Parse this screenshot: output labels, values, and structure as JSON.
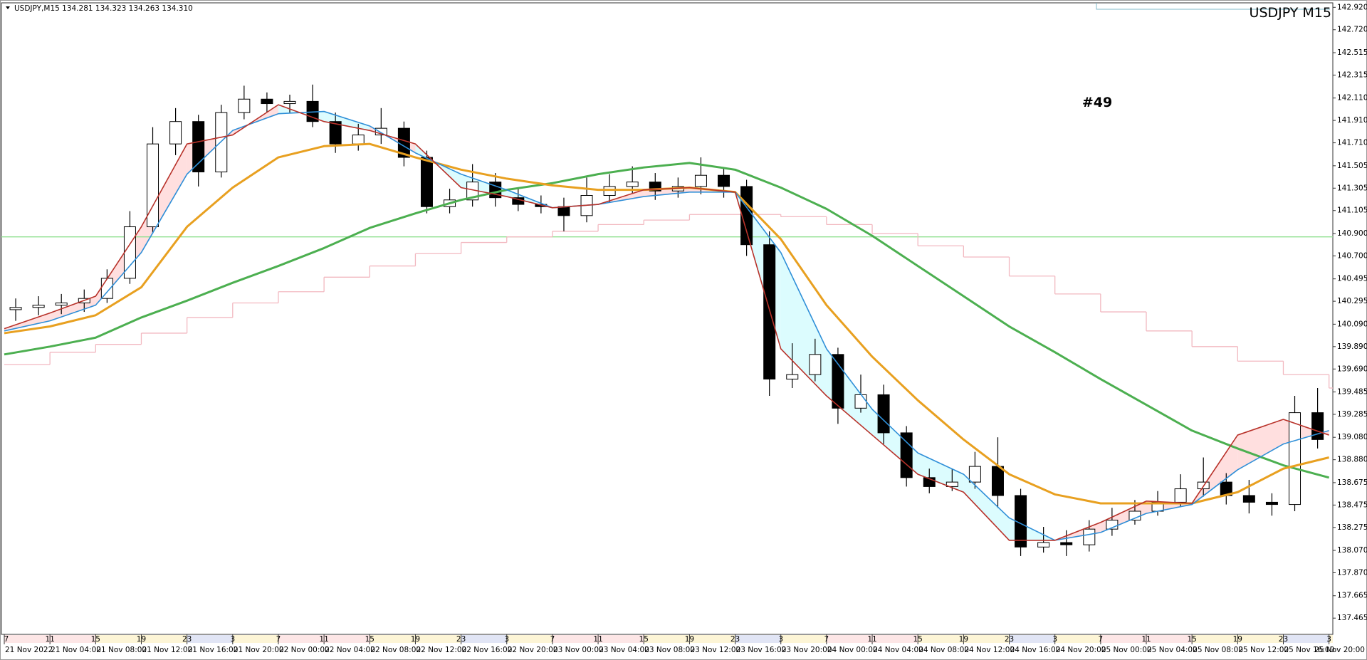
{
  "chart_data": {
    "type": "candlestick",
    "title": "USDJPY,M15  134.281 134.323 134.263 134.310",
    "symbol_label": "USDJPY M15",
    "annotation": "#49",
    "annotation_color": "#2ea043",
    "ylim": [
      137.32,
      142.96
    ],
    "yticks": [
      {
        "value": 142.92,
        "label": "142.920"
      },
      {
        "value": 142.72,
        "label": "142.720"
      },
      {
        "value": 142.515,
        "label": "142.515"
      },
      {
        "value": 142.315,
        "label": "142.315"
      },
      {
        "value": 142.11,
        "label": "142.110"
      },
      {
        "value": 141.91,
        "label": "141.910"
      },
      {
        "value": 141.71,
        "label": "141.710"
      },
      {
        "value": 141.505,
        "label": "141.505"
      },
      {
        "value": 141.305,
        "label": "141.305"
      },
      {
        "value": 141.105,
        "label": "141.105"
      },
      {
        "value": 140.9,
        "label": "140.900"
      },
      {
        "value": 140.7,
        "label": "140.700"
      },
      {
        "value": 140.495,
        "label": "140.495"
      },
      {
        "value": 140.295,
        "label": "140.295"
      },
      {
        "value": 140.09,
        "label": "140.090"
      },
      {
        "value": 139.89,
        "label": "139.890"
      },
      {
        "value": 139.69,
        "label": "139.690"
      },
      {
        "value": 139.485,
        "label": "139.485"
      },
      {
        "value": 139.285,
        "label": "139.285"
      },
      {
        "value": 139.08,
        "label": "139.080"
      },
      {
        "value": 138.88,
        "label": "138.880"
      },
      {
        "value": 138.675,
        "label": "138.675"
      },
      {
        "value": 138.475,
        "label": "138.475"
      },
      {
        "value": 138.275,
        "label": "138.275"
      },
      {
        "value": 138.07,
        "label": "138.070"
      },
      {
        "value": 137.87,
        "label": "137.870"
      },
      {
        "value": 137.665,
        "label": "137.665"
      },
      {
        "value": 137.465,
        "label": "137.465"
      }
    ],
    "grid": false,
    "x_labels": [
      "21 Nov 2022",
      "21 Nov 04:00",
      "21 Nov 08:00",
      "21 Nov 12:00",
      "21 Nov 16:00",
      "21 Nov 20:00",
      "22 Nov 00:00",
      "22 Nov 04:00",
      "22 Nov 08:00",
      "22 Nov 12:00",
      "22 Nov 16:00",
      "22 Nov 20:00",
      "23 Nov 00:00",
      "23 Nov 04:00",
      "23 Nov 08:00",
      "23 Nov 12:00",
      "23 Nov 16:00",
      "23 Nov 20:00",
      "24 Nov 00:00",
      "24 Nov 04:00",
      "24 Nov 08:00",
      "24 Nov 12:00",
      "24 Nov 16:00",
      "24 Nov 20:00",
      "25 Nov 00:00",
      "25 Nov 04:00",
      "25 Nov 08:00",
      "25 Nov 12:00",
      "25 Nov 16:00",
      "25 Nov 20:00"
    ],
    "hour_labels": [
      "7",
      "11",
      "15",
      "19",
      "23",
      "3",
      "7",
      "11",
      "15",
      "19",
      "23",
      "3",
      "7",
      "11",
      "15",
      "19",
      "23",
      "3",
      "7",
      "11",
      "15",
      "19",
      "23",
      "3",
      "7",
      "11",
      "15",
      "19",
      "23",
      "3"
    ],
    "candles": {
      "open": [
        140.22,
        140.24,
        140.26,
        140.28,
        140.32,
        140.5,
        140.96,
        141.7,
        141.9,
        141.45,
        141.98,
        142.1,
        142.06,
        142.08,
        141.9,
        141.7,
        141.78,
        141.84,
        141.58,
        141.14,
        141.2,
        141.36,
        141.22,
        141.16,
        141.14,
        141.06,
        141.24,
        141.32,
        141.36,
        141.28,
        141.32,
        141.42,
        141.32,
        140.8,
        139.6,
        139.64,
        139.82,
        139.34,
        139.46,
        139.12,
        138.72,
        138.64,
        138.68,
        138.82,
        138.56,
        138.1,
        138.14,
        138.12,
        138.26,
        138.34,
        138.42,
        138.5,
        138.62,
        138.68,
        138.56,
        138.5,
        138.48,
        139.3
      ],
      "high": [
        140.32,
        140.34,
        140.36,
        140.4,
        140.58,
        141.1,
        141.85,
        142.02,
        141.96,
        142.05,
        142.22,
        142.16,
        142.14,
        142.23,
        141.98,
        141.88,
        142.02,
        141.9,
        141.64,
        141.3,
        141.52,
        141.44,
        141.3,
        141.24,
        141.22,
        141.4,
        141.43,
        141.5,
        141.44,
        141.4,
        141.58,
        141.48,
        141.38,
        140.92,
        139.92,
        139.96,
        139.88,
        139.64,
        139.55,
        139.18,
        138.8,
        138.8,
        138.95,
        139.08,
        138.62,
        138.28,
        138.25,
        138.34,
        138.45,
        138.52,
        138.6,
        138.75,
        138.9,
        138.76,
        138.7,
        138.58,
        139.45,
        139.52
      ],
      "low": [
        140.12,
        140.17,
        140.18,
        140.2,
        140.28,
        140.45,
        140.9,
        141.6,
        141.32,
        141.4,
        141.92,
        141.98,
        141.98,
        141.85,
        141.62,
        141.64,
        141.7,
        141.5,
        141.08,
        141.08,
        141.14,
        141.14,
        141.1,
        141.08,
        140.92,
        141.0,
        141.18,
        141.26,
        141.2,
        141.22,
        141.25,
        141.22,
        140.7,
        139.45,
        139.52,
        139.58,
        139.2,
        139.3,
        139.02,
        138.64,
        138.58,
        138.6,
        138.62,
        138.45,
        138.02,
        138.05,
        138.02,
        138.06,
        138.2,
        138.3,
        138.38,
        138.46,
        138.55,
        138.48,
        138.4,
        138.38,
        138.42,
        138.98
      ],
      "close": [
        140.24,
        140.26,
        140.28,
        140.32,
        140.5,
        140.96,
        141.7,
        141.9,
        141.45,
        141.98,
        142.1,
        142.06,
        142.08,
        141.9,
        141.7,
        141.78,
        141.84,
        141.58,
        141.14,
        141.2,
        141.36,
        141.22,
        141.16,
        141.14,
        141.06,
        141.24,
        141.32,
        141.36,
        141.28,
        141.32,
        141.42,
        141.32,
        140.8,
        139.6,
        139.64,
        139.82,
        139.34,
        139.46,
        139.12,
        138.72,
        138.64,
        138.68,
        138.82,
        138.56,
        138.1,
        138.14,
        138.12,
        138.26,
        138.34,
        138.42,
        138.5,
        138.62,
        138.68,
        138.56,
        138.5,
        138.48,
        139.3,
        139.06
      ]
    },
    "lines": [
      {
        "color": "#4caf50",
        "values": [
          139.82,
          139.89,
          139.97,
          140.15,
          140.3,
          140.46,
          140.61,
          140.77,
          140.95,
          141.08,
          141.2,
          141.29,
          141.35,
          141.43,
          141.49,
          141.53,
          141.47,
          141.31,
          141.12,
          140.88,
          140.61,
          140.34,
          140.07,
          139.84,
          139.6,
          139.37,
          139.14,
          138.98,
          138.83,
          138.72
        ]
      },
      {
        "color": "#e8a020",
        "values": [
          140.01,
          140.07,
          140.17,
          140.42,
          140.96,
          141.31,
          141.58,
          141.68,
          141.7,
          141.58,
          141.47,
          141.39,
          141.33,
          141.29,
          141.29,
          141.31,
          141.27,
          140.85,
          140.26,
          139.8,
          139.41,
          139.06,
          138.75,
          138.57,
          138.49,
          138.49,
          138.49,
          138.59,
          138.8,
          138.9
        ]
      },
      {
        "color": "#2f8fd8",
        "values": [
          140.03,
          140.12,
          140.26,
          140.73,
          141.43,
          141.82,
          141.97,
          141.99,
          141.86,
          141.62,
          141.43,
          141.29,
          141.13,
          141.16,
          141.23,
          141.27,
          141.27,
          140.73,
          139.87,
          139.33,
          138.94,
          138.75,
          138.36,
          138.16,
          138.23,
          138.4,
          138.48,
          138.79,
          139.02,
          139.14
        ]
      },
      {
        "color": "#b8322a",
        "values": [
          140.05,
          140.19,
          140.34,
          140.96,
          141.7,
          141.78,
          142.05,
          141.9,
          141.82,
          141.7,
          141.31,
          141.23,
          141.13,
          141.16,
          141.29,
          141.31,
          141.27,
          139.87,
          139.45,
          139.1,
          138.75,
          138.59,
          138.16,
          138.16,
          138.32,
          138.51,
          138.49,
          139.1,
          139.24,
          139.1
        ]
      }
    ],
    "step_line": {
      "color": "#f2b8c0",
      "values": [
        139.73,
        139.84,
        139.91,
        140.01,
        140.15,
        140.28,
        140.38,
        140.51,
        140.61,
        140.72,
        140.82,
        140.87,
        140.92,
        140.98,
        141.02,
        141.07,
        141.07,
        141.05,
        140.98,
        140.9,
        140.79,
        140.69,
        140.52,
        140.36,
        140.2,
        140.03,
        139.89,
        139.76,
        139.64,
        139.52
      ]
    },
    "hline": {
      "value": 140.87,
      "color": "#90e090"
    }
  }
}
